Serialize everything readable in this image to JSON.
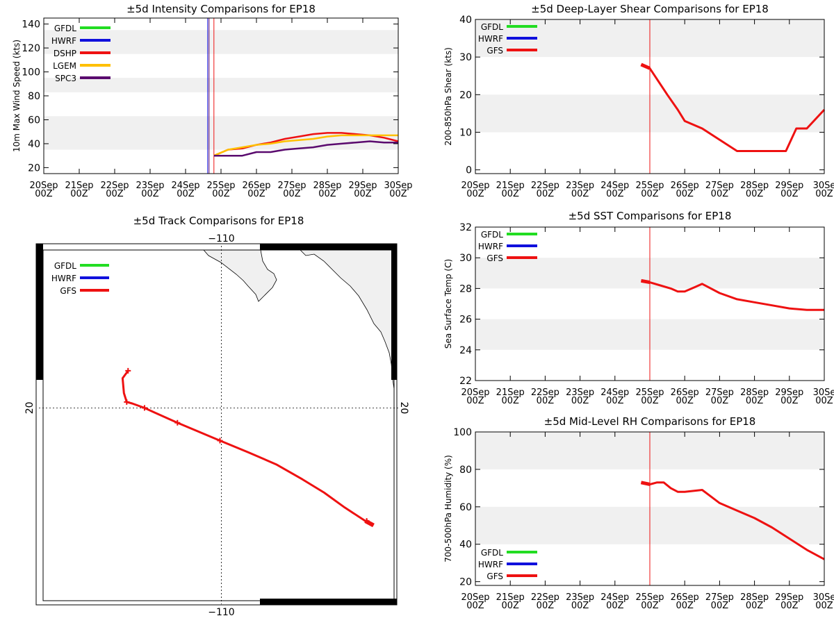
{
  "colors": {
    "GFDL": "#22dd22",
    "HWRF": "#1010dd",
    "DSHP": "#ee1111",
    "GFS": "#ee1111",
    "LGEM": "#ffc000",
    "SPC3": "#5a0a6e",
    "band": "#f0f0f0",
    "vline": "#ee1111",
    "land": "#f0f0f0"
  },
  "x_ticks": [
    "20Sep",
    "21Sep",
    "22Sep",
    "23Sep",
    "24Sep",
    "25Sep",
    "26Sep",
    "27Sep",
    "28Sep",
    "29Sep",
    "30Sep"
  ],
  "x_ticks_right": [
    "20Sep",
    "21Sep",
    "22Sep",
    "23Sep",
    "24Sep",
    "25Sep",
    "26Sep",
    "27Sep",
    "28Sep",
    "29Sep",
    "30Se"
  ],
  "x_sub": "00Z",
  "chart_data": [
    {
      "id": "intensity",
      "type": "line",
      "title": "±5d Intensity Comparisons for EP18",
      "xlabel": "",
      "ylabel": "10m Max Wind Speed (kts)",
      "xlim": [
        0,
        10
      ],
      "ylim": [
        15,
        145
      ],
      "yticks": [
        20,
        40,
        60,
        80,
        100,
        120,
        140
      ],
      "bands": [
        [
          35,
          63
        ],
        [
          83,
          95
        ],
        [
          115,
          135
        ]
      ],
      "analysis_time": 4.8,
      "legend": [
        "GFDL",
        "HWRF",
        "DSHP",
        "LGEM",
        "SPC3"
      ],
      "series": [
        {
          "name": "DSHP",
          "x": [
            4.8,
            5.2,
            5.6,
            6.0,
            6.4,
            6.8,
            7.2,
            7.6,
            8.0,
            8.4,
            8.8,
            9.2,
            9.6,
            10.0
          ],
          "y": [
            30,
            35,
            36,
            39,
            41,
            44,
            46,
            48,
            49,
            49,
            48,
            47,
            45,
            42
          ]
        },
        {
          "name": "LGEM",
          "x": [
            4.8,
            5.2,
            5.6,
            6.0,
            6.4,
            6.8,
            7.2,
            7.6,
            8.0,
            8.4,
            8.8,
            9.2,
            9.6,
            10.0
          ],
          "y": [
            30,
            35,
            37,
            39,
            40,
            42,
            43,
            44,
            46,
            47,
            47,
            47,
            47,
            47
          ]
        },
        {
          "name": "SPC3",
          "x": [
            4.8,
            5.2,
            5.6,
            6.0,
            6.4,
            6.8,
            7.2,
            7.6,
            8.0,
            8.4,
            8.8,
            9.2,
            9.6,
            10.0
          ],
          "y": [
            30,
            30,
            30,
            33,
            33,
            35,
            36,
            37,
            39,
            40,
            41,
            42,
            41,
            41
          ]
        }
      ]
    },
    {
      "id": "shear",
      "type": "line",
      "title": "±5d Deep-Layer Shear Comparisons for EP18",
      "xlabel": "",
      "ylabel": "200-850hPa Shear (kts)",
      "xlim": [
        0,
        10
      ],
      "ylim": [
        -1,
        40
      ],
      "yticks": [
        0,
        10,
        20,
        30,
        40
      ],
      "bands": [
        [
          10,
          20
        ],
        [
          30,
          40
        ]
      ],
      "analysis_time": 5.0,
      "legend": [
        "GFDL",
        "HWRF",
        "GFS"
      ],
      "series": [
        {
          "name": "GFS",
          "x": [
            4.75,
            5.0,
            5.5,
            5.8,
            6.0,
            6.5,
            7.0,
            7.5,
            8.0,
            8.5,
            8.9,
            9.2,
            9.5,
            10.0
          ],
          "y": [
            28,
            27,
            20,
            16,
            13,
            11,
            8,
            5,
            5,
            5,
            5,
            11,
            11,
            16
          ]
        }
      ]
    },
    {
      "id": "sst",
      "type": "line",
      "title": "±5d SST Comparisons for EP18",
      "xlabel": "",
      "ylabel": "Sea Surface Temp (C)",
      "xlim": [
        0,
        10
      ],
      "ylim": [
        22,
        32
      ],
      "yticks": [
        22,
        24,
        26,
        28,
        30,
        32
      ],
      "bands": [
        [
          24,
          26
        ],
        [
          28,
          30
        ]
      ],
      "analysis_time": 5.0,
      "legend": [
        "GFDL",
        "HWRF",
        "GFS"
      ],
      "series": [
        {
          "name": "GFS",
          "x": [
            4.75,
            5.0,
            5.3,
            5.6,
            5.8,
            6.0,
            6.3,
            6.5,
            7.0,
            7.5,
            8.0,
            8.5,
            9.0,
            9.5,
            10.0
          ],
          "y": [
            28.5,
            28.4,
            28.2,
            28.0,
            27.8,
            27.8,
            28.1,
            28.3,
            27.7,
            27.3,
            27.1,
            26.9,
            26.7,
            26.6,
            26.6
          ]
        }
      ]
    },
    {
      "id": "rh",
      "type": "line",
      "title": "±5d Mid-Level RH Comparisons for EP18",
      "xlabel": "",
      "ylabel": "700-500hPa Humidity (%)",
      "xlim": [
        0,
        10
      ],
      "ylim": [
        18,
        100
      ],
      "yticks": [
        20,
        40,
        60,
        80,
        100
      ],
      "bands": [
        [
          40,
          60
        ],
        [
          80,
          100
        ]
      ],
      "analysis_time": 5.0,
      "legend": [
        "GFDL",
        "HWRF",
        "GFS"
      ],
      "series": [
        {
          "name": "GFS",
          "x": [
            4.75,
            5.0,
            5.2,
            5.4,
            5.6,
            5.8,
            6.0,
            6.5,
            7.0,
            7.5,
            8.0,
            8.5,
            9.0,
            9.5,
            10.0
          ],
          "y": [
            73,
            72,
            73,
            73,
            70,
            68,
            68,
            69,
            62,
            58,
            54,
            49,
            43,
            37,
            32
          ]
        }
      ]
    },
    {
      "id": "track",
      "type": "map",
      "title": "±5d Track Comparisons for EP18",
      "lon_label": "-110",
      "lat_label": "20",
      "lon_range": [
        -123.3,
        -97.1
      ],
      "lat_range": [
        6.8,
        30.9
      ],
      "legend": [
        "GFDL",
        "HWRF",
        "GFS"
      ],
      "track": {
        "name": "GFS",
        "lon": [
          -98.9,
          -99.5,
          -101.0,
          -102.5,
          -104.1,
          -106.0,
          -108.0,
          -110.1,
          -113.2,
          -114.9,
          -115.6,
          -116.5,
          -116.9,
          -117.1,
          -117.2,
          -116.8
        ],
        "lat": [
          12.1,
          12.4,
          13.3,
          14.3,
          15.2,
          16.2,
          17.0,
          17.8,
          19.0,
          19.7,
          20.0,
          20.3,
          20.4,
          21.0,
          22.0,
          22.5
        ],
        "markers": [
          [
            -99.4,
            12.4
          ],
          [
            -110.1,
            17.8
          ],
          [
            -113.2,
            19.0
          ],
          [
            -115.6,
            20.0
          ],
          [
            -116.9,
            20.4
          ],
          [
            -116.8,
            22.5
          ]
        ]
      }
    }
  ]
}
